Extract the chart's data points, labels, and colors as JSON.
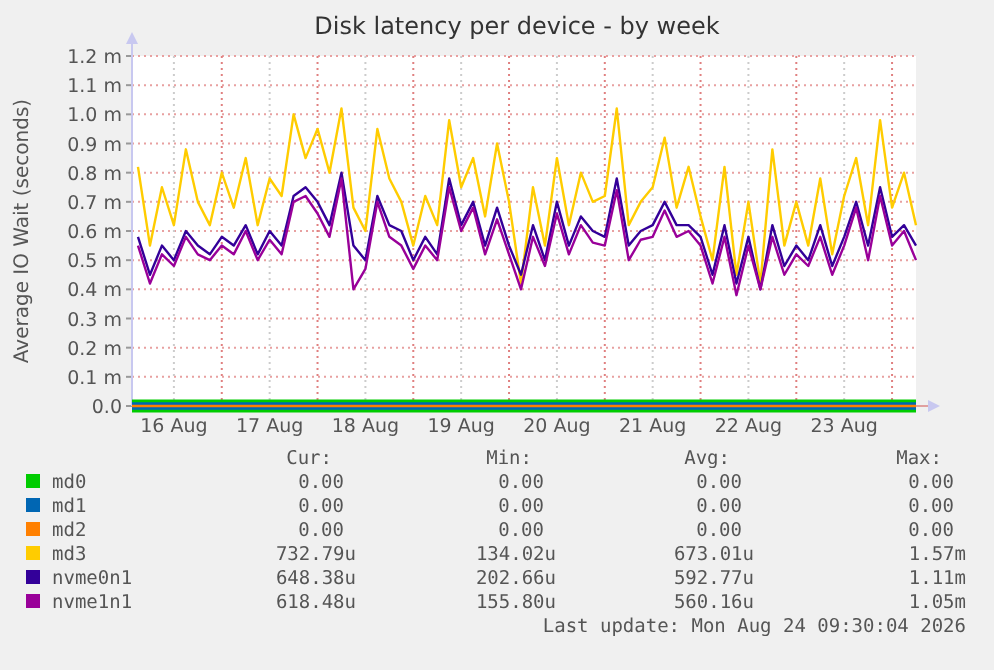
{
  "chart_data": {
    "type": "line",
    "title": "Disk latency per device - by week",
    "ylabel": "Average IO Wait (seconds)",
    "xlim": [
      "2026-08-16T01:30",
      "2026-08-24T06:00"
    ],
    "xticks": [
      {
        "value": "2026-08-16T12:00",
        "label": "16 Aug"
      },
      {
        "value": "2026-08-17T00:00",
        "label": null
      },
      {
        "value": "2026-08-17T12:00",
        "label": "17 Aug"
      },
      {
        "value": "2026-08-18T00:00",
        "label": null
      },
      {
        "value": "2026-08-18T12:00",
        "label": "18 Aug"
      },
      {
        "value": "2026-08-19T00:00",
        "label": null
      },
      {
        "value": "2026-08-19T12:00",
        "label": "19 Aug"
      },
      {
        "value": "2026-08-20T00:00",
        "label": null
      },
      {
        "value": "2026-08-20T12:00",
        "label": "20 Aug"
      },
      {
        "value": "2026-08-21T00:00",
        "label": null
      },
      {
        "value": "2026-08-21T12:00",
        "label": "21 Aug"
      },
      {
        "value": "2026-08-22T00:00",
        "label": null
      },
      {
        "value": "2026-08-22T12:00",
        "label": "22 Aug"
      },
      {
        "value": "2026-08-23T00:00",
        "label": null
      },
      {
        "value": "2026-08-23T12:00",
        "label": "23 Aug"
      },
      {
        "value": "2026-08-24T00:00",
        "label": null
      }
    ],
    "ylim": [
      0,
      1.2
    ],
    "yticks": [
      {
        "value": 0,
        "label": "0.0"
      },
      {
        "value": 0.1,
        "label": "0.1 m"
      },
      {
        "value": 0.2,
        "label": "0.2 m"
      },
      {
        "value": 0.3,
        "label": "0.3 m"
      },
      {
        "value": 0.4,
        "label": "0.4 m"
      },
      {
        "value": 0.5,
        "label": "0.5 m"
      },
      {
        "value": 0.6,
        "label": "0.6 m"
      },
      {
        "value": 0.7,
        "label": "0.7 m"
      },
      {
        "value": 0.8,
        "label": "0.8 m"
      },
      {
        "value": 0.9,
        "label": "0.9 m"
      },
      {
        "value": 1.0,
        "label": "1.0 m"
      },
      {
        "value": 1.1,
        "label": "1.1 m"
      },
      {
        "value": 1.2,
        "label": "1.2 m"
      }
    ],
    "x": [
      "2026-08-16T03:00",
      "2026-08-16T06:00",
      "2026-08-16T09:00",
      "2026-08-16T12:00",
      "2026-08-16T15:00",
      "2026-08-16T18:00",
      "2026-08-16T21:00",
      "2026-08-17T00:00",
      "2026-08-17T03:00",
      "2026-08-17T06:00",
      "2026-08-17T09:00",
      "2026-08-17T12:00",
      "2026-08-17T15:00",
      "2026-08-17T18:00",
      "2026-08-17T21:00",
      "2026-08-18T00:00",
      "2026-08-18T03:00",
      "2026-08-18T06:00",
      "2026-08-18T09:00",
      "2026-08-18T12:00",
      "2026-08-18T15:00",
      "2026-08-18T18:00",
      "2026-08-18T21:00",
      "2026-08-19T00:00",
      "2026-08-19T03:00",
      "2026-08-19T06:00",
      "2026-08-19T09:00",
      "2026-08-19T12:00",
      "2026-08-19T15:00",
      "2026-08-19T18:00",
      "2026-08-19T21:00",
      "2026-08-20T00:00",
      "2026-08-20T03:00",
      "2026-08-20T06:00",
      "2026-08-20T09:00",
      "2026-08-20T12:00",
      "2026-08-20T15:00",
      "2026-08-20T18:00",
      "2026-08-20T21:00",
      "2026-08-21T00:00",
      "2026-08-21T03:00",
      "2026-08-21T06:00",
      "2026-08-21T09:00",
      "2026-08-21T12:00",
      "2026-08-21T15:00",
      "2026-08-21T18:00",
      "2026-08-21T21:00",
      "2026-08-22T00:00",
      "2026-08-22T03:00",
      "2026-08-22T06:00",
      "2026-08-22T09:00",
      "2026-08-22T12:00",
      "2026-08-22T15:00",
      "2026-08-22T18:00",
      "2026-08-22T21:00",
      "2026-08-23T00:00",
      "2026-08-23T03:00",
      "2026-08-23T06:00",
      "2026-08-23T09:00",
      "2026-08-23T12:00",
      "2026-08-23T15:00",
      "2026-08-23T18:00",
      "2026-08-23T21:00",
      "2026-08-24T00:00",
      "2026-08-24T03:00",
      "2026-08-24T06:00"
    ],
    "grid": true,
    "legend": "bottom",
    "marker": "none",
    "line_style": "solid",
    "series": [
      {
        "name": "md0",
        "color": "#00cc00",
        "x": [
          "2026-08-16T01:30",
          "2026-08-24T06:00"
        ],
        "values": [
          0,
          0
        ]
      },
      {
        "name": "md1",
        "color": "#0066b3",
        "x": [
          "2026-08-16T01:30",
          "2026-08-24T06:00"
        ],
        "values": [
          0,
          0
        ]
      },
      {
        "name": "md2",
        "color": "#ff8000",
        "x": [
          "2026-08-16T01:30",
          "2026-08-24T06:00"
        ],
        "values": [
          0,
          0
        ]
      },
      {
        "name": "md3",
        "color": "#ffcc00",
        "values": [
          0.82,
          0.55,
          0.75,
          0.62,
          0.88,
          0.7,
          0.62,
          0.8,
          0.68,
          0.85,
          0.62,
          0.78,
          0.72,
          1.0,
          0.85,
          0.95,
          0.8,
          1.02,
          0.68,
          0.6,
          0.95,
          0.78,
          0.7,
          0.55,
          0.72,
          0.62,
          0.98,
          0.75,
          0.85,
          0.65,
          0.9,
          0.7,
          0.42,
          0.75,
          0.55,
          0.85,
          0.62,
          0.8,
          0.7,
          0.72,
          1.02,
          0.62,
          0.7,
          0.75,
          0.92,
          0.68,
          0.82,
          0.65,
          0.5,
          0.82,
          0.45,
          0.7,
          0.42,
          0.88,
          0.55,
          0.7,
          0.55,
          0.78,
          0.52,
          0.72,
          0.85,
          0.62,
          0.98,
          0.68,
          0.8,
          0.62
        ]
      },
      {
        "name": "nvme0n1",
        "color": "#330099",
        "values": [
          0.58,
          0.45,
          0.55,
          0.5,
          0.6,
          0.55,
          0.52,
          0.58,
          0.55,
          0.62,
          0.52,
          0.6,
          0.55,
          0.72,
          0.75,
          0.7,
          0.62,
          0.8,
          0.55,
          0.5,
          0.72,
          0.62,
          0.6,
          0.5,
          0.58,
          0.52,
          0.78,
          0.62,
          0.7,
          0.55,
          0.68,
          0.55,
          0.45,
          0.62,
          0.5,
          0.7,
          0.55,
          0.65,
          0.6,
          0.58,
          0.78,
          0.55,
          0.6,
          0.62,
          0.7,
          0.62,
          0.62,
          0.58,
          0.45,
          0.62,
          0.42,
          0.58,
          0.4,
          0.62,
          0.48,
          0.55,
          0.5,
          0.62,
          0.48,
          0.58,
          0.7,
          0.55,
          0.75,
          0.58,
          0.62,
          0.55
        ]
      },
      {
        "name": "nvme1n1",
        "color": "#990099",
        "values": [
          0.55,
          0.42,
          0.52,
          0.48,
          0.58,
          0.52,
          0.5,
          0.55,
          0.52,
          0.6,
          0.5,
          0.57,
          0.52,
          0.7,
          0.72,
          0.66,
          0.58,
          0.78,
          0.4,
          0.47,
          0.7,
          0.58,
          0.55,
          0.47,
          0.55,
          0.5,
          0.75,
          0.6,
          0.68,
          0.52,
          0.64,
          0.52,
          0.4,
          0.58,
          0.48,
          0.66,
          0.52,
          0.62,
          0.56,
          0.55,
          0.74,
          0.5,
          0.57,
          0.58,
          0.67,
          0.58,
          0.6,
          0.55,
          0.42,
          0.58,
          0.38,
          0.55,
          0.4,
          0.58,
          0.45,
          0.52,
          0.48,
          0.58,
          0.45,
          0.55,
          0.68,
          0.5,
          0.72,
          0.55,
          0.6,
          0.5
        ]
      }
    ],
    "annotations": [
      "Cur:",
      "Min:",
      "Avg:",
      "Max:",
      "0.00",
      "0.00",
      "0.00",
      "0.00",
      "0.00",
      "0.00",
      "0.00",
      "0.00",
      "0.00",
      "0.00",
      "0.00",
      "0.00",
      "732.79u",
      "134.02u",
      "673.01u",
      "1.57m",
      "648.38u",
      "202.66u",
      "592.77u",
      "1.11m",
      "618.48u",
      "155.80u",
      "560.16u",
      "1.05m",
      "Last update: Mon Aug 24 09:30:04 2026"
    ]
  }
}
